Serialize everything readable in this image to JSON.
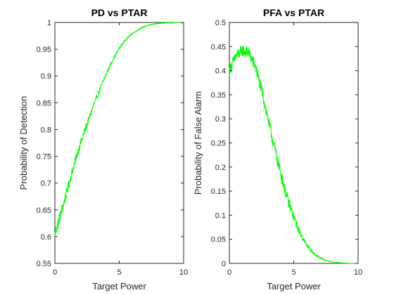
{
  "colors": {
    "series": "#00ff00",
    "axes": "#262626",
    "background": "#ffffff"
  },
  "chart_data": [
    {
      "type": "line",
      "title": "PD vs PTAR",
      "xlabel": "Target Power",
      "ylabel": "Probability of Detection",
      "xlim": [
        0,
        10
      ],
      "ylim": [
        0.55,
        1
      ],
      "xticks": [
        0,
        5,
        10
      ],
      "xtick_labels": [
        "0",
        "5",
        "10"
      ],
      "yticks": [
        0.55,
        0.6,
        0.65,
        0.7,
        0.75,
        0.8,
        0.85,
        0.9,
        0.95,
        1
      ],
      "ytick_labels": [
        "0.55",
        "0.6",
        "0.65",
        "0.7",
        "0.75",
        "0.8",
        "0.85",
        "0.9",
        "0.95",
        "1"
      ],
      "grid": false,
      "noisy": true,
      "series": [
        {
          "x": [
            0,
            0.5,
            1,
            1.5,
            2,
            2.5,
            3,
            3.5,
            4,
            4.5,
            5,
            5.5,
            6,
            6.5,
            7,
            7.5,
            8,
            8.5,
            9,
            9.5,
            10
          ],
          "y": [
            0.605,
            0.645,
            0.69,
            0.735,
            0.775,
            0.81,
            0.845,
            0.875,
            0.905,
            0.93,
            0.952,
            0.968,
            0.979,
            0.987,
            0.993,
            0.996,
            0.998,
            0.9993,
            0.9998,
            1.0,
            1.0
          ]
        }
      ]
    },
    {
      "type": "line",
      "title": "PFA vs PTAR",
      "xlabel": "Target Power",
      "ylabel": "Probability of False Alarm",
      "xlim": [
        0,
        10
      ],
      "ylim": [
        0,
        0.5
      ],
      "xticks": [
        0,
        5,
        10
      ],
      "xtick_labels": [
        "0",
        "5",
        "10"
      ],
      "yticks": [
        0,
        0.05,
        0.1,
        0.15,
        0.2,
        0.25,
        0.3,
        0.35,
        0.4,
        0.45,
        0.5
      ],
      "ytick_labels": [
        "0",
        "0.05",
        "0.1",
        "0.15",
        "0.2",
        "0.25",
        "0.3",
        "0.35",
        "0.4",
        "0.45",
        "0.5"
      ],
      "grid": false,
      "noisy": true,
      "series": [
        {
          "x": [
            0,
            0.5,
            1,
            1.5,
            2,
            2.5,
            3,
            3.5,
            4,
            4.5,
            5,
            5.5,
            6,
            6.5,
            7,
            7.5,
            8,
            8.5,
            9,
            9.5,
            10
          ],
          "y": [
            0.4,
            0.43,
            0.442,
            0.438,
            0.41,
            0.36,
            0.3,
            0.24,
            0.185,
            0.135,
            0.095,
            0.062,
            0.038,
            0.022,
            0.012,
            0.006,
            0.003,
            0.0015,
            0.0006,
            0.0002,
            0.0
          ]
        }
      ]
    }
  ]
}
